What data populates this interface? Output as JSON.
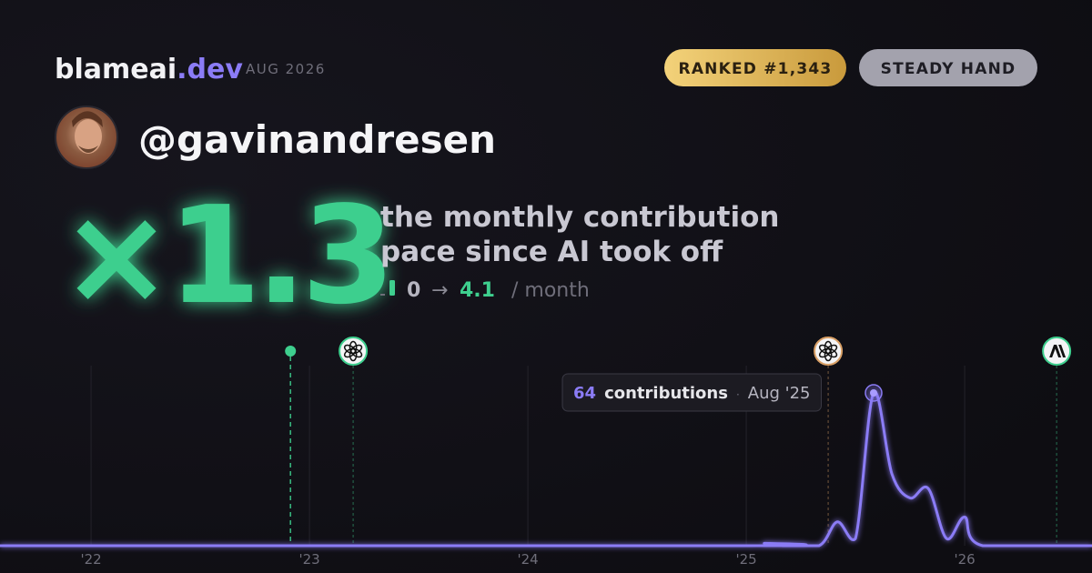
{
  "header": {
    "brand": "blameai",
    "brand_suffix": ".dev",
    "date": "AUG 2026",
    "badges": [
      "RANKED #1,343",
      "STEADY HAND"
    ]
  },
  "user": {
    "handle": "@gavinandresen"
  },
  "stat": {
    "multiplier": "×1.3",
    "description": [
      "the monthly contribution",
      "pace since AI took off"
    ],
    "from": "0",
    "arrow": "→",
    "to": "4.1",
    "unit": "/ month"
  },
  "chart_data": {
    "type": "line",
    "x": [
      2021.583,
      2025.0,
      2025.083,
      2025.167,
      2025.333,
      2025.417,
      2025.5,
      2025.583,
      2025.667,
      2025.75,
      2025.833,
      2025.917,
      2026.0,
      2026.083,
      2026.583
    ],
    "series": [
      {
        "name": "contributions",
        "color": "#8b7cf6",
        "values": [
          0,
          0,
          1,
          0,
          0,
          10,
          3,
          64,
          30,
          20,
          24,
          3,
          12,
          0,
          0
        ]
      }
    ],
    "xlim": [
      2021.583,
      2026.583
    ],
    "ylim": [
      0,
      80
    ],
    "xticks": [
      {
        "value": 2022,
        "label": "'22"
      },
      {
        "value": 2023,
        "label": "'23"
      },
      {
        "value": 2024,
        "label": "'24"
      },
      {
        "value": 2025,
        "label": "'25"
      },
      {
        "value": 2026,
        "label": "'26"
      }
    ],
    "grid": true,
    "markers": [
      {
        "x": 2022.913,
        "icon": "dot",
        "color": "#3ecf8e"
      },
      {
        "x": 2023.2,
        "icon": "openai",
        "color": "#3ecf8e"
      },
      {
        "x": 2025.375,
        "icon": "openai",
        "color": "#d9a066"
      },
      {
        "x": 2026.421,
        "icon": "anthropic",
        "color": "#3ecf8e"
      }
    ],
    "tooltip": {
      "index": 7,
      "label": "contributions",
      "date": "Aug '25"
    }
  }
}
